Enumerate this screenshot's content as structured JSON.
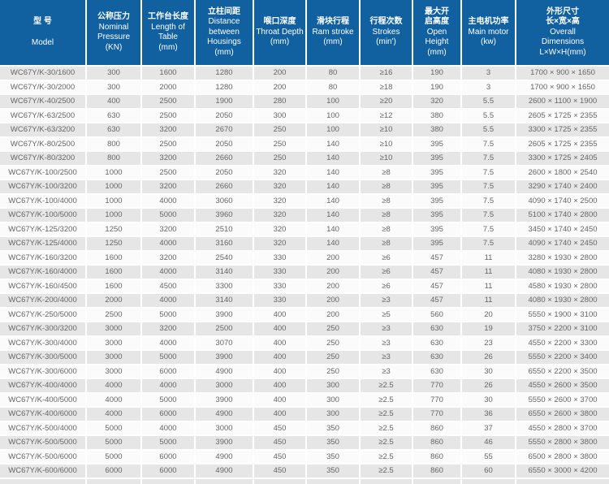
{
  "chart_data": {
    "type": "table",
    "title": "WC67Y/K press brake specification table",
    "colors": {
      "header_bg": "#11609f",
      "header_text": "#ffffff",
      "row_alt_bg": "#e6e6e6",
      "row_base_bg": "#fbfbfb",
      "cell_text": "#656565"
    },
    "columns": [
      {
        "id": "model",
        "cn": "型 号",
        "en": "Model",
        "unit": ""
      },
      {
        "id": "pressure",
        "cn": "公称压力",
        "en": "Nominal Pressure",
        "unit": "(KN)"
      },
      {
        "id": "table-length",
        "cn": "工作台长度",
        "en": "Length of Table",
        "unit": "(mm)"
      },
      {
        "id": "housing-distance",
        "cn": "立柱间距",
        "en": "Distance between Housings",
        "unit": "(mm)"
      },
      {
        "id": "throat-depth",
        "cn": "喉口深度",
        "en": "Throat Depth",
        "unit": "(mm)"
      },
      {
        "id": "ram-stroke",
        "cn": "滑块行程",
        "en": "Ram stroke",
        "unit": "(mm)"
      },
      {
        "id": "strokes",
        "cn": "行程次数",
        "en": "Strokes",
        "unit": "(min')"
      },
      {
        "id": "open-height",
        "cn": "最大开启高度",
        "en": "Open Height",
        "unit": "(mm)"
      },
      {
        "id": "main-motor",
        "cn": "主电机功率",
        "en": "Main motor",
        "unit": "(kw)"
      },
      {
        "id": "dimensions",
        "cn": "外形尺寸",
        "cn2": "长×宽×高",
        "en": "Overall Dimensions",
        "unit": "L×W×H(mm)"
      }
    ],
    "rows": [
      [
        "WC67Y/K-30/1600",
        "300",
        "1600",
        "1280",
        "200",
        "80",
        "≥16",
        "190",
        "3",
        "1700 × 900 × 1650"
      ],
      [
        "WC67Y/K-30/2000",
        "300",
        "2000",
        "1280",
        "200",
        "80",
        "≥18",
        "190",
        "3",
        "1700 × 900 × 1650"
      ],
      [
        "WC67Y/K-40/2500",
        "400",
        "2500",
        "1900",
        "280",
        "100",
        "≥20",
        "320",
        "5.5",
        "2600 × 1100 × 1900"
      ],
      [
        "WC67Y/K-63/2500",
        "630",
        "2500",
        "2050",
        "300",
        "100",
        "≥12",
        "380",
        "5.5",
        "2605 × 1725 × 2355"
      ],
      [
        "WC67Y/K-63/3200",
        "630",
        "3200",
        "2670",
        "250",
        "100",
        "≥10",
        "380",
        "5.5",
        "3300 × 1725 × 2355"
      ],
      [
        "WC67Y/K-80/2500",
        "800",
        "2500",
        "2050",
        "250",
        "140",
        "≥10",
        "395",
        "7.5",
        "2605 × 1725 × 2355"
      ],
      [
        "WC67Y/K-80/3200",
        "800",
        "3200",
        "2660",
        "250",
        "140",
        "≥10",
        "395",
        "7.5",
        "3300 × 1725 × 2405"
      ],
      [
        "WC67Y/K-100/2500",
        "1000",
        "2500",
        "2050",
        "320",
        "140",
        "≥8",
        "395",
        "7.5",
        "2600 × 1800 × 2540"
      ],
      [
        "WC67Y/K-100/3200",
        "1000",
        "3200",
        "2660",
        "320",
        "140",
        "≥8",
        "395",
        "7.5",
        "3290 × 1740 × 2400"
      ],
      [
        "WC67Y/K-100/4000",
        "1000",
        "4000",
        "3060",
        "320",
        "140",
        "≥8",
        "395",
        "7.5",
        "4090 × 1740 × 2500"
      ],
      [
        "WC67Y/K-100/5000",
        "1000",
        "5000",
        "3960",
        "320",
        "140",
        "≥8",
        "395",
        "7.5",
        "5100 × 1740 × 2800"
      ],
      [
        "WC67Y/K-125/3200",
        "1250",
        "3200",
        "2510",
        "320",
        "140",
        "≥8",
        "395",
        "7.5",
        "3450 × 1740 × 2450"
      ],
      [
        "WC67Y/K-125/4000",
        "1250",
        "4000",
        "3160",
        "320",
        "140",
        "≥8",
        "395",
        "7.5",
        "4090 × 1740 × 2450"
      ],
      [
        "WC67Y/K-160/3200",
        "1600",
        "3200",
        "2540",
        "330",
        "200",
        "≥6",
        "457",
        "11",
        "3280 × 1930 × 2800"
      ],
      [
        "WC67Y/K-160/4000",
        "1600",
        "4000",
        "3140",
        "330",
        "200",
        "≥6",
        "457",
        "11",
        "4080 × 1930 × 2800"
      ],
      [
        "WC67Y/K-160/4500",
        "1600",
        "4500",
        "3300",
        "330",
        "200",
        "≥6",
        "457",
        "11",
        "4580 × 1930 × 2800"
      ],
      [
        "WC67Y/K-200/4000",
        "2000",
        "4000",
        "3140",
        "330",
        "200",
        "≥3",
        "457",
        "11",
        "4080 × 1930 × 2800"
      ],
      [
        "WC67Y/K-250/5000",
        "2500",
        "5000",
        "3900",
        "400",
        "200",
        "≥5",
        "560",
        "20",
        "5550 × 1900 × 3100"
      ],
      [
        "WC67Y/K-300/3200",
        "3000",
        "3200",
        "2500",
        "400",
        "250",
        "≥3",
        "630",
        "19",
        "3750 × 2200 × 3100"
      ],
      [
        "WC67Y/K-300/4000",
        "3000",
        "4000",
        "3070",
        "400",
        "250",
        "≥3",
        "630",
        "23",
        "4550 × 2200 × 3300"
      ],
      [
        "WC67Y/K-300/5000",
        "3000",
        "5000",
        "3900",
        "400",
        "250",
        "≥3",
        "630",
        "26",
        "5550 × 2200 × 3400"
      ],
      [
        "WC67Y/K-300/6000",
        "3000",
        "6000",
        "4900",
        "400",
        "250",
        "≥3",
        "630",
        "30",
        "6550 × 2200 × 3500"
      ],
      [
        "WC67Y/K-400/4000",
        "4000",
        "4000",
        "3000",
        "400",
        "300",
        "≥2.5",
        "770",
        "26",
        "4550 × 2600 × 3500"
      ],
      [
        "WC67Y/K-400/5000",
        "4000",
        "5000",
        "3900",
        "400",
        "300",
        "≥2.5",
        "770",
        "30",
        "5550 × 2600 × 3700"
      ],
      [
        "WC67Y/K-400/6000",
        "4000",
        "6000",
        "4900",
        "400",
        "300",
        "≥2.5",
        "770",
        "36",
        "6550 × 2600 × 3800"
      ],
      [
        "WC67Y/K-500/4000",
        "5000",
        "4000",
        "3000",
        "450",
        "350",
        "≥2.5",
        "860",
        "37",
        "4550 × 2800 × 3700"
      ],
      [
        "WC67Y/K-500/5000",
        "5000",
        "5000",
        "3900",
        "450",
        "350",
        "≥2.5",
        "860",
        "46",
        "5550 × 2800 × 3800"
      ],
      [
        "WC67Y/K-500/6000",
        "5000",
        "6000",
        "4900",
        "450",
        "350",
        "≥2.5",
        "860",
        "55",
        "6500 × 2800 × 3800"
      ],
      [
        "WC67Y/K-600/6000",
        "6000",
        "6000",
        "4900",
        "450",
        "350",
        "≥2.5",
        "860",
        "60",
        "6550 × 3000 × 4200"
      ]
    ]
  }
}
